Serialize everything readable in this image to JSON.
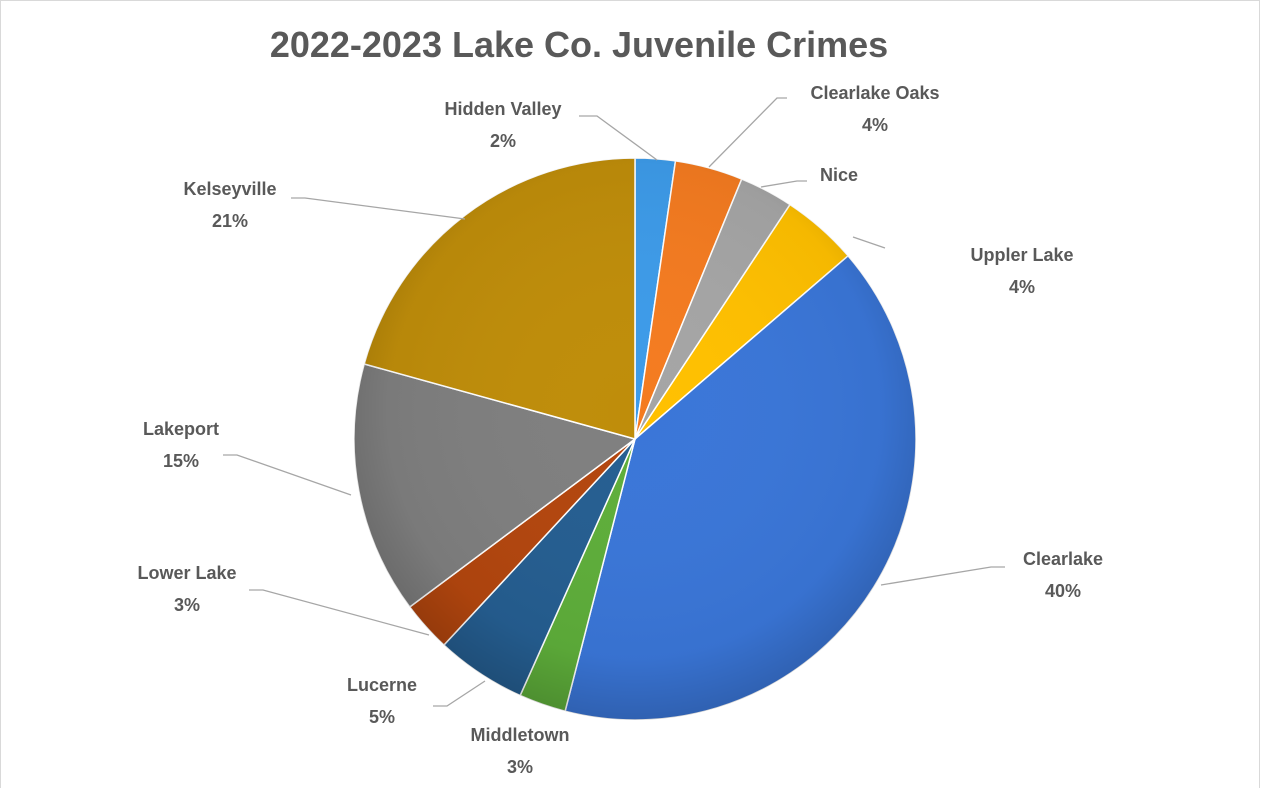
{
  "chart_data": {
    "type": "pie",
    "title": "2022-2023 Lake Co. Juvenile Crimes",
    "legend": "none",
    "slices": [
      {
        "name": "Hidden Valley",
        "label": "2%",
        "value": 2.3,
        "color": "#3d9be9"
      },
      {
        "name": "Clearlake Oaks",
        "label": "4%",
        "value": 3.9,
        "color": "#f47b20"
      },
      {
        "name": "Nice",
        "label": "",
        "value": 3.1,
        "color": "#a5a5a5"
      },
      {
        "name": "Uppler Lake",
        "label": "4%",
        "value": 4.4,
        "color": "#ffc000"
      },
      {
        "name": "Clearlake",
        "label": "40%",
        "value": 40.3,
        "color": "#3a76d8"
      },
      {
        "name": "Middletown",
        "label": "3%",
        "value": 2.7,
        "color": "#5eae3a"
      },
      {
        "name": "Lucerne",
        "label": "5%",
        "value": 5.2,
        "color": "#255e91"
      },
      {
        "name": "Lower Lake",
        "label": "3%",
        "value": 2.9,
        "color": "#b3460e"
      },
      {
        "name": "Lakeport",
        "label": "15%",
        "value": 14.5,
        "color": "#7f7f7f"
      },
      {
        "name": "Kelseyville",
        "label": "21%",
        "value": 20.7,
        "color": "#bf8d0a"
      }
    ]
  }
}
